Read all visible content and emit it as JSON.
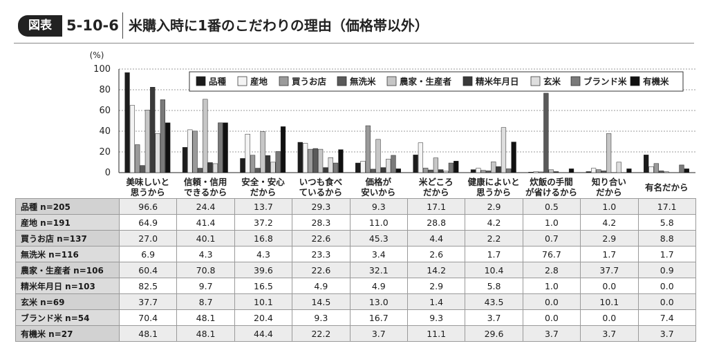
{
  "header": {
    "badge": "図表",
    "figure_no": "5-10-6",
    "title": "米購入時に1番のこだわりの理由（価格帯以外）"
  },
  "colors": {
    "品種": "#1c1c1c",
    "産地": "#f4f4f4",
    "買うお店": "#9a9a9a",
    "無洗米": "#5a5a5a",
    "農家・生産者": "#c6c6c6",
    "精米年月日": "#3a3a3a",
    "玄米": "#dedede",
    "ブランド米": "#7a7a7a",
    "有機米": "#101010"
  },
  "chart_data": {
    "type": "bar",
    "y_unit_label": "(%)",
    "ylim": [
      0,
      100
    ],
    "yticks": [
      0,
      20,
      40,
      60,
      80,
      100
    ],
    "grid": true,
    "legend": "top-right",
    "categories": [
      [
        "美味しいと",
        "思うから"
      ],
      [
        "信頼・信用",
        "できるから"
      ],
      [
        "安全・安心",
        "だから"
      ],
      [
        "いつも食べ",
        "ているから"
      ],
      [
        "価格が",
        "安いから"
      ],
      [
        "米どころ",
        "だから"
      ],
      [
        "健康によいと",
        "思うから"
      ],
      [
        "炊飯の手間",
        "が省けるから"
      ],
      [
        "知り合い",
        "だから"
      ],
      [
        "有名だから"
      ]
    ],
    "series": [
      {
        "name": "品種",
        "n": "n=205",
        "values": [
          96.6,
          24.4,
          13.7,
          29.3,
          9.3,
          17.1,
          2.9,
          0.5,
          1.0,
          17.1
        ]
      },
      {
        "name": "産地",
        "n": "n=191",
        "values": [
          64.9,
          41.4,
          37.2,
          28.3,
          11.0,
          28.8,
          4.2,
          1.0,
          4.2,
          5.8
        ]
      },
      {
        "name": "買うお店",
        "n": "n=137",
        "values": [
          27.0,
          40.1,
          16.8,
          22.6,
          45.3,
          4.4,
          2.2,
          0.7,
          2.9,
          8.8
        ]
      },
      {
        "name": "無洗米",
        "n": "n=116",
        "values": [
          6.9,
          4.3,
          4.3,
          23.3,
          3.4,
          2.6,
          1.7,
          76.7,
          1.7,
          1.7
        ]
      },
      {
        "name": "農家・生産者",
        "n": "n=106",
        "values": [
          60.4,
          70.8,
          39.6,
          22.6,
          32.1,
          14.2,
          10.4,
          2.8,
          37.7,
          0.9
        ]
      },
      {
        "name": "精米年月日",
        "n": "n=103",
        "values": [
          82.5,
          9.7,
          16.5,
          4.9,
          4.9,
          2.9,
          5.8,
          1.0,
          0.0,
          0.0
        ]
      },
      {
        "name": "玄米",
        "n": "n=69",
        "values": [
          37.7,
          8.7,
          10.1,
          14.5,
          13.0,
          1.4,
          43.5,
          0.0,
          10.1,
          0.0
        ]
      },
      {
        "name": "ブランド米",
        "n": "n=54",
        "values": [
          70.4,
          48.1,
          20.4,
          9.3,
          16.7,
          9.3,
          3.7,
          0.0,
          0.0,
          7.4
        ]
      },
      {
        "name": "有機米",
        "n": "n=27",
        "values": [
          48.1,
          48.1,
          44.4,
          22.2,
          3.7,
          11.1,
          29.6,
          3.7,
          3.7,
          3.7
        ]
      }
    ]
  }
}
